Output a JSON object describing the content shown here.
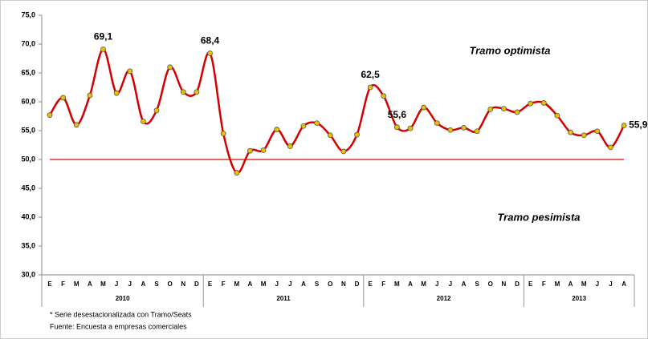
{
  "chart_data": {
    "type": "line",
    "categories": [
      "E",
      "F",
      "M",
      "A",
      "M",
      "J",
      "J",
      "A",
      "S",
      "O",
      "N",
      "D",
      "E",
      "F",
      "M",
      "A",
      "M",
      "J",
      "J",
      "A",
      "S",
      "O",
      "N",
      "D",
      "E",
      "F",
      "M",
      "A",
      "M",
      "J",
      "J",
      "A",
      "S",
      "O",
      "N",
      "D",
      "E",
      "F",
      "M",
      "A",
      "M",
      "J",
      "J",
      "A"
    ],
    "years": [
      "2010",
      "2011",
      "2012",
      "2013"
    ],
    "series": [
      {
        "color": "#d40000",
        "marker_color": "#e8c200",
        "values": [
          57.7,
          60.7,
          56.0,
          61.1,
          69.1,
          61.5,
          65.3,
          56.6,
          58.5,
          66.0,
          61.7,
          61.7,
          68.4,
          54.5,
          47.7,
          51.5,
          51.6,
          55.2,
          52.3,
          55.8,
          56.3,
          54.2,
          51.4,
          54.3,
          62.5,
          61.0,
          55.6,
          55.4,
          59.0,
          56.3,
          55.1,
          55.5,
          54.9,
          58.7,
          58.8,
          58.2,
          59.7,
          59.8,
          57.6,
          54.7,
          54.2,
          54.9,
          52.1,
          55.9
        ],
        "value_labels": [
          null,
          null,
          null,
          null,
          "69,1",
          null,
          null,
          null,
          null,
          null,
          null,
          null,
          "68,4",
          null,
          null,
          null,
          null,
          null,
          null,
          null,
          null,
          null,
          null,
          null,
          "62,5",
          null,
          "55,6",
          null,
          null,
          null,
          null,
          null,
          null,
          null,
          null,
          null,
          null,
          null,
          null,
          null,
          null,
          null,
          null,
          "55,9"
        ]
      }
    ],
    "ylim": [
      30,
      75
    ],
    "yticks": [
      {
        "value": 30,
        "label": "30,0"
      },
      {
        "value": 35,
        "label": "35,0"
      },
      {
        "value": 40,
        "label": "40,0"
      },
      {
        "value": 45,
        "label": "45,0"
      },
      {
        "value": 50,
        "label": "50,0"
      },
      {
        "value": 55,
        "label": "55,0"
      },
      {
        "value": 60,
        "label": "60,0"
      },
      {
        "value": 65,
        "label": "65,0"
      },
      {
        "value": 70,
        "label": "70,0"
      },
      {
        "value": 75,
        "label": "75,0"
      }
    ],
    "threshold": 50,
    "threshold_color": "#e03030",
    "annotations": [
      {
        "text": "Tramo optimista",
        "color": "#1f5fbf"
      },
      {
        "text": "Tramo pesimista",
        "color": "#b00000"
      }
    ],
    "notes": [
      "* Serie desestacionalizada con Tramo/Seats",
      "Fuente: Encuesta a empresas comerciales"
    ]
  }
}
